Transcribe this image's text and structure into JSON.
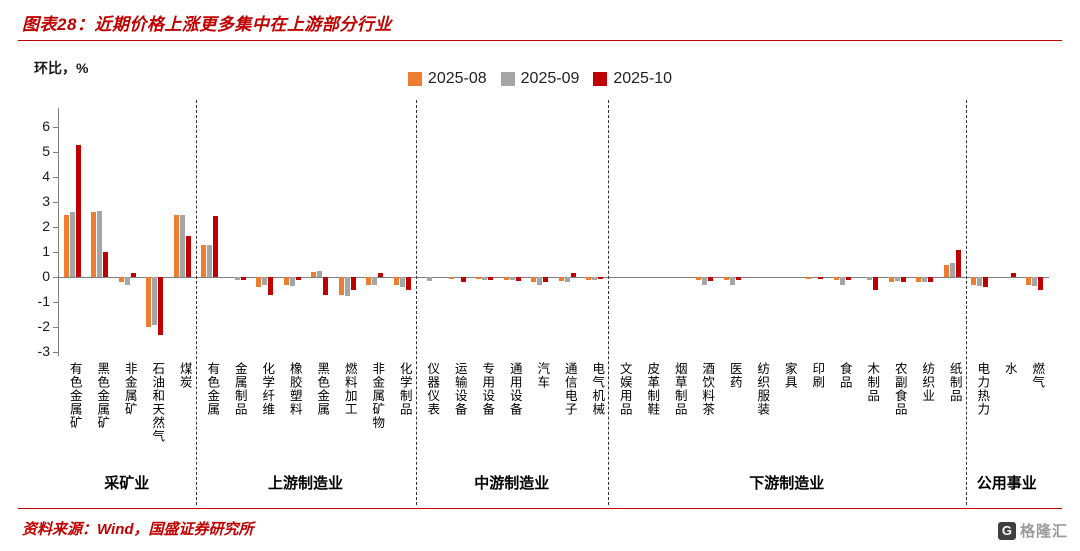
{
  "page": {
    "title": "图表28：近期价格上涨更多集中在上游部分行业",
    "source": "资料来源：Wind，国盛证券研究所",
    "watermark": "格隆汇",
    "logo_glyph": "G"
  },
  "chart_data": {
    "type": "bar",
    "title": "图表28：近期价格上涨更多集中在上游部分行业",
    "xlabel": "",
    "ylabel": "环比，%",
    "ylim": [
      -3,
      6
    ],
    "yticks": [
      6,
      5,
      4,
      3,
      2,
      1,
      0,
      -1,
      -2,
      -3
    ],
    "grid": false,
    "legend_position": "top-center",
    "axis_color": "#7f7f7f",
    "categories": [
      "有色金属矿",
      "黑色金属矿",
      "非金属矿",
      "石油和天然气",
      "煤炭",
      "有色金属",
      "金属制品",
      "化学纤维",
      "橡胶塑料",
      "黑色金属",
      "燃料加工",
      "非金属矿物",
      "化学制品",
      "仪器仪表",
      "运输设备",
      "专用设备",
      "通用设备",
      "汽车",
      "通信电子",
      "电气机械",
      "文娱用品",
      "皮革制鞋",
      "烟草制品",
      "酒饮料茶",
      "医药",
      "纺织服装",
      "家具",
      "印刷",
      "食品",
      "木制品",
      "农副食品",
      "纺织业",
      "纸制品",
      "电力热力",
      "水",
      "燃气"
    ],
    "groups": [
      {
        "label": "采矿业",
        "start": 0,
        "end": 4
      },
      {
        "label": "上游制造业",
        "start": 5,
        "end": 12
      },
      {
        "label": "中游制造业",
        "start": 13,
        "end": 19
      },
      {
        "label": "下游制造业",
        "start": 20,
        "end": 32
      },
      {
        "label": "公用事业",
        "start": 33,
        "end": 35
      }
    ],
    "series": [
      {
        "name": "2025-08",
        "color": "#ED7D31",
        "values": [
          2.5,
          2.6,
          -0.2,
          -2.0,
          2.5,
          1.3,
          0.0,
          -0.4,
          -0.3,
          0.2,
          -0.7,
          -0.3,
          -0.3,
          0.0,
          -0.05,
          -0.05,
          -0.1,
          -0.2,
          -0.15,
          -0.1,
          0.0,
          0.0,
          0.0,
          -0.1,
          -0.1,
          0.0,
          0.0,
          -0.05,
          -0.1,
          0.0,
          -0.2,
          -0.2,
          0.5,
          -0.3,
          0.0,
          -0.3
        ]
      },
      {
        "name": "2025-09",
        "color": "#A5A5A5",
        "values": [
          2.6,
          2.65,
          -0.3,
          -1.9,
          2.5,
          1.3,
          -0.1,
          -0.3,
          -0.35,
          0.25,
          -0.75,
          -0.3,
          -0.4,
          -0.15,
          0.0,
          -0.1,
          -0.1,
          -0.3,
          -0.2,
          -0.1,
          0.0,
          0.0,
          0.0,
          -0.3,
          -0.3,
          0.0,
          0.0,
          0.0,
          -0.3,
          -0.1,
          -0.15,
          -0.2,
          0.55,
          -0.35,
          0.0,
          -0.35
        ]
      },
      {
        "name": "2025-10",
        "color": "#C00000",
        "values": [
          5.3,
          1.0,
          0.15,
          -2.3,
          1.65,
          2.45,
          -0.1,
          -0.7,
          -0.1,
          -0.7,
          -0.5,
          0.15,
          -0.5,
          0.0,
          -0.2,
          -0.1,
          -0.15,
          -0.2,
          0.15,
          -0.05,
          0.0,
          0.0,
          0.0,
          -0.15,
          -0.1,
          0.0,
          0.0,
          -0.05,
          -0.1,
          -0.5,
          -0.2,
          -0.2,
          1.1,
          -0.4,
          0.15,
          -0.5
        ]
      }
    ]
  }
}
